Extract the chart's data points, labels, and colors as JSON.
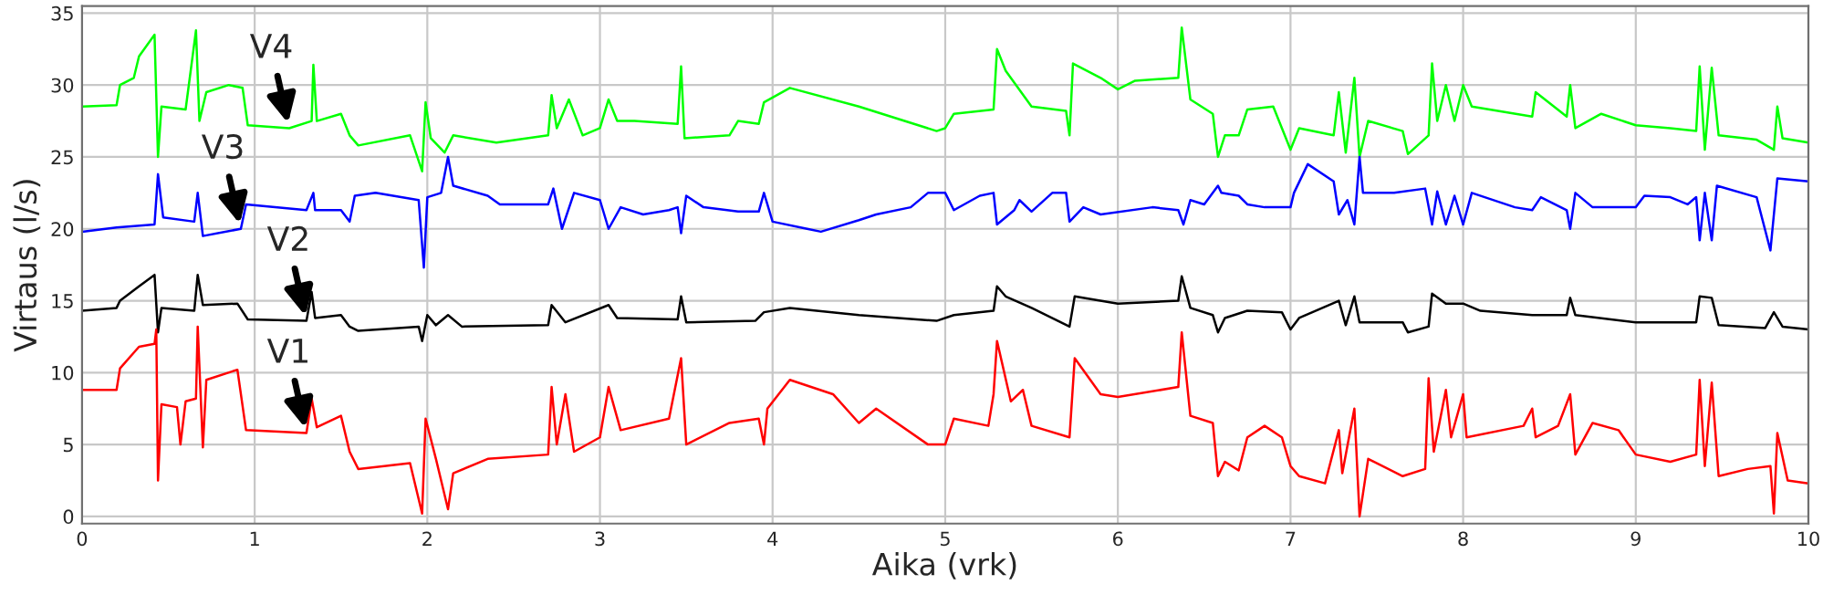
{
  "chart_data": {
    "type": "line",
    "xlabel": "Aika (vrk)",
    "ylabel": "Virtaus (l/s)",
    "xlim": [
      0,
      10
    ],
    "ylim": [
      -0.5,
      35.5
    ],
    "xticks": [
      0,
      1,
      2,
      3,
      4,
      5,
      6,
      7,
      8,
      9,
      10
    ],
    "yticks": [
      0,
      5,
      10,
      15,
      20,
      25,
      30,
      35
    ],
    "grid": true,
    "legend": false,
    "series": [
      {
        "color": "#00ff00",
        "x": [
          0,
          0.2,
          0.22,
          0.3,
          0.33,
          0.42,
          0.44,
          0.46,
          0.6,
          0.66,
          0.68,
          0.72,
          0.85,
          0.93,
          0.96,
          1.2,
          1.33,
          1.34,
          1.36,
          1.5,
          1.55,
          1.6,
          1.9,
          1.97,
          1.99,
          2.02,
          2.1,
          2.15,
          2.4,
          2.7,
          2.72,
          2.75,
          2.82,
          2.9,
          3.0,
          3.05,
          3.1,
          3.2,
          3.45,
          3.47,
          3.49,
          3.75,
          3.8,
          3.92,
          3.95,
          4.1,
          4.5,
          4.95,
          5.0,
          5.05,
          5.28,
          5.3,
          5.35,
          5.5,
          5.7,
          5.72,
          5.74,
          5.9,
          6.0,
          6.1,
          6.35,
          6.37,
          6.42,
          6.55,
          6.58,
          6.62,
          6.7,
          6.75,
          6.9,
          7.0,
          7.05,
          7.25,
          7.28,
          7.32,
          7.37,
          7.4,
          7.45,
          7.65,
          7.68,
          7.8,
          7.82,
          7.85,
          7.9,
          7.95,
          8.0,
          8.05,
          8.4,
          8.42,
          8.6,
          8.62,
          8.65,
          8.8,
          9.0,
          9.2,
          9.35,
          9.37,
          9.4,
          9.44,
          9.48,
          9.7,
          9.8,
          9.82,
          9.85,
          10
        ],
        "values": [
          28.5,
          28.6,
          30,
          30.5,
          32,
          33.5,
          25,
          28.5,
          28.3,
          33.8,
          27.5,
          29.5,
          30,
          29.8,
          27.2,
          27,
          27.5,
          31.4,
          27.5,
          28,
          26.5,
          25.8,
          26.5,
          24,
          28.8,
          26.3,
          25.3,
          26.5,
          26,
          26.5,
          29.3,
          27,
          29,
          26.5,
          27,
          29,
          27.5,
          27.5,
          27.3,
          31.3,
          26.3,
          26.5,
          27.5,
          27.3,
          28.8,
          29.8,
          28.5,
          26.8,
          27,
          28,
          28.3,
          32.5,
          31,
          28.5,
          28.2,
          26.5,
          31.5,
          30.5,
          29.7,
          30.3,
          30.5,
          34,
          29,
          28,
          25,
          26.5,
          26.5,
          28.3,
          28.5,
          25.5,
          27,
          26.5,
          29.5,
          25.3,
          30.5,
          25,
          27.5,
          26.8,
          25.2,
          26.5,
          31.5,
          27.5,
          30,
          27.5,
          30,
          28.5,
          27.8,
          29.5,
          27.8,
          30,
          27,
          28,
          27.2,
          27,
          26.8,
          31.3,
          25.5,
          31.2,
          26.5,
          26.2,
          25.5,
          28.5,
          26.3,
          26
        ]
      },
      {
        "color": "#0000ff",
        "x": [
          0,
          0.2,
          0.42,
          0.44,
          0.47,
          0.65,
          0.67,
          0.7,
          0.92,
          0.95,
          1.3,
          1.34,
          1.35,
          1.5,
          1.55,
          1.58,
          1.7,
          1.95,
          1.98,
          2.0,
          2.08,
          2.12,
          2.15,
          2.35,
          2.42,
          2.7,
          2.73,
          2.78,
          2.85,
          3.0,
          3.05,
          3.12,
          3.25,
          3.4,
          3.45,
          3.47,
          3.5,
          3.6,
          3.8,
          3.92,
          3.95,
          4.0,
          4.2,
          4.28,
          4.5,
          4.6,
          4.8,
          4.9,
          5.0,
          5.05,
          5.2,
          5.28,
          5.3,
          5.4,
          5.43,
          5.5,
          5.62,
          5.7,
          5.72,
          5.8,
          5.9,
          6.2,
          6.35,
          6.38,
          6.42,
          6.5,
          6.58,
          6.6,
          6.7,
          6.75,
          6.85,
          7.0,
          7.02,
          7.1,
          7.25,
          7.28,
          7.33,
          7.37,
          7.4,
          7.42,
          7.6,
          7.78,
          7.82,
          7.85,
          7.9,
          7.95,
          8.0,
          8.05,
          8.3,
          8.4,
          8.45,
          8.6,
          8.62,
          8.65,
          8.75,
          9.0,
          9.05,
          9.2,
          9.3,
          9.35,
          9.37,
          9.4,
          9.44,
          9.47,
          9.7,
          9.78,
          9.82,
          10
        ],
        "values": [
          19.8,
          20.1,
          20.3,
          23.8,
          20.8,
          20.5,
          22.5,
          19.5,
          20,
          21.7,
          21.3,
          22.5,
          21.3,
          21.3,
          20.5,
          22.3,
          22.5,
          22,
          17.3,
          22.2,
          22.5,
          25,
          23,
          22.3,
          21.7,
          21.7,
          22.8,
          20,
          22.5,
          22,
          20,
          21.5,
          21,
          21.3,
          21.5,
          19.7,
          22.3,
          21.5,
          21.2,
          21.2,
          22.5,
          20.5,
          20,
          19.8,
          20.6,
          21,
          21.5,
          22.5,
          22.5,
          21.3,
          22.3,
          22.5,
          20.3,
          21.3,
          22,
          21.2,
          22.5,
          22.5,
          20.5,
          21.5,
          21,
          21.5,
          21.3,
          20.3,
          22,
          21.7,
          23,
          22.5,
          22.3,
          21.7,
          21.5,
          21.5,
          22.5,
          24.5,
          23.3,
          21,
          22,
          20.3,
          25,
          22.5,
          22.5,
          22.8,
          20.3,
          22.6,
          20.3,
          22.3,
          20.3,
          22.5,
          21.5,
          21.3,
          22.2,
          21.3,
          20,
          22.5,
          21.5,
          21.5,
          22.3,
          22.2,
          21.7,
          22.2,
          19.2,
          22.5,
          19.2,
          23,
          22.2,
          18.5,
          23.5,
          23.3
        ]
      },
      {
        "color": "#000000",
        "x": [
          0,
          0.2,
          0.22,
          0.33,
          0.42,
          0.44,
          0.46,
          0.65,
          0.67,
          0.7,
          0.9,
          0.96,
          1.3,
          1.33,
          1.35,
          1.5,
          1.55,
          1.6,
          1.95,
          1.97,
          2.0,
          2.05,
          2.12,
          2.2,
          2.7,
          2.72,
          2.8,
          3.05,
          3.1,
          3.45,
          3.47,
          3.5,
          3.9,
          3.95,
          4.1,
          4.5,
          4.95,
          5.05,
          5.28,
          5.3,
          5.35,
          5.5,
          5.72,
          5.75,
          6.0,
          6.35,
          6.37,
          6.42,
          6.55,
          6.58,
          6.62,
          6.75,
          6.95,
          7.0,
          7.05,
          7.28,
          7.32,
          7.37,
          7.4,
          7.65,
          7.68,
          7.8,
          7.82,
          7.9,
          8.0,
          8.1,
          8.4,
          8.6,
          8.62,
          8.65,
          9.0,
          9.35,
          9.37,
          9.44,
          9.48,
          9.75,
          9.8,
          9.85,
          10
        ],
        "values": [
          14.3,
          14.5,
          15,
          16,
          16.8,
          12.8,
          14.5,
          14.3,
          16.8,
          14.7,
          14.8,
          13.7,
          13.6,
          15.6,
          13.8,
          14,
          13.2,
          12.9,
          13.2,
          12.2,
          14,
          13.3,
          14,
          13.2,
          13.3,
          14.7,
          13.5,
          14.7,
          13.8,
          13.7,
          15.3,
          13.5,
          13.6,
          14.2,
          14.5,
          14,
          13.6,
          14,
          14.3,
          16,
          15.3,
          14.5,
          13.2,
          15.3,
          14.8,
          15,
          16.7,
          14.5,
          14,
          12.8,
          13.8,
          14.3,
          14.2,
          13,
          13.8,
          15,
          13.3,
          15.3,
          13.5,
          13.5,
          12.8,
          13.2,
          15.5,
          14.8,
          14.8,
          14.3,
          14,
          14,
          15.2,
          14,
          13.5,
          13.5,
          15.3,
          15.2,
          13.3,
          13.1,
          14.2,
          13.2,
          13
        ]
      },
      {
        "color": "#ff0000",
        "x": [
          0,
          0.2,
          0.22,
          0.33,
          0.42,
          0.43,
          0.44,
          0.46,
          0.55,
          0.57,
          0.6,
          0.66,
          0.67,
          0.7,
          0.72,
          0.9,
          0.95,
          1.3,
          1.33,
          1.36,
          1.5,
          1.55,
          1.6,
          1.9,
          1.97,
          1.99,
          2.05,
          2.12,
          2.15,
          2.35,
          2.7,
          2.72,
          2.75,
          2.8,
          2.85,
          3.0,
          3.05,
          3.12,
          3.4,
          3.47,
          3.5,
          3.75,
          3.92,
          3.95,
          3.97,
          4.1,
          4.35,
          4.5,
          4.6,
          4.9,
          5.0,
          5.05,
          5.25,
          5.28,
          5.3,
          5.38,
          5.45,
          5.5,
          5.72,
          5.75,
          5.9,
          6.0,
          6.35,
          6.37,
          6.42,
          6.55,
          6.58,
          6.62,
          6.7,
          6.75,
          6.85,
          6.95,
          7.0,
          7.05,
          7.2,
          7.28,
          7.3,
          7.37,
          7.4,
          7.45,
          7.65,
          7.78,
          7.8,
          7.83,
          7.9,
          7.93,
          8.0,
          8.02,
          8.35,
          8.4,
          8.42,
          8.55,
          8.62,
          8.65,
          8.75,
          8.9,
          9.0,
          9.2,
          9.35,
          9.37,
          9.4,
          9.44,
          9.48,
          9.65,
          9.78,
          9.8,
          9.82,
          9.88,
          10
        ],
        "values": [
          8.8,
          8.8,
          10.3,
          11.8,
          12,
          13,
          2.5,
          7.8,
          7.6,
          5,
          8,
          8.2,
          13.2,
          4.8,
          9.5,
          10.2,
          6,
          5.8,
          8.2,
          6.2,
          7,
          4.5,
          3.3,
          3.7,
          0.2,
          6.8,
          4,
          0.5,
          3,
          4,
          4.3,
          9,
          5,
          8.5,
          4.5,
          5.5,
          9,
          6,
          6.8,
          11,
          5,
          6.5,
          6.8,
          5,
          7.5,
          9.5,
          8.5,
          6.5,
          7.5,
          5,
          5,
          6.8,
          6.3,
          8.5,
          12.2,
          8,
          8.8,
          6.3,
          5.5,
          11,
          8.5,
          8.3,
          9,
          12.8,
          7,
          6.5,
          2.8,
          3.8,
          3.2,
          5.5,
          6.3,
          5.5,
          3.5,
          2.8,
          2.3,
          6,
          3,
          7.5,
          0,
          4,
          2.8,
          3.3,
          9.6,
          4.5,
          8.8,
          5.5,
          8.5,
          5.5,
          6.3,
          7.5,
          5.5,
          6.3,
          8.5,
          4.3,
          6.5,
          6,
          4.3,
          3.8,
          4.3,
          9.5,
          3.5,
          9.3,
          2.8,
          3.3,
          3.5,
          0.2,
          5.8,
          2.5,
          2.3
        ]
      }
    ],
    "annotations": [
      {
        "text": "V4",
        "x": 1.2,
        "y": 27
      },
      {
        "text": "V3",
        "x": 0.92,
        "y": 20
      },
      {
        "text": "V2",
        "x": 1.3,
        "y": 13.6
      },
      {
        "text": "V1",
        "x": 1.3,
        "y": 5.8
      }
    ]
  }
}
